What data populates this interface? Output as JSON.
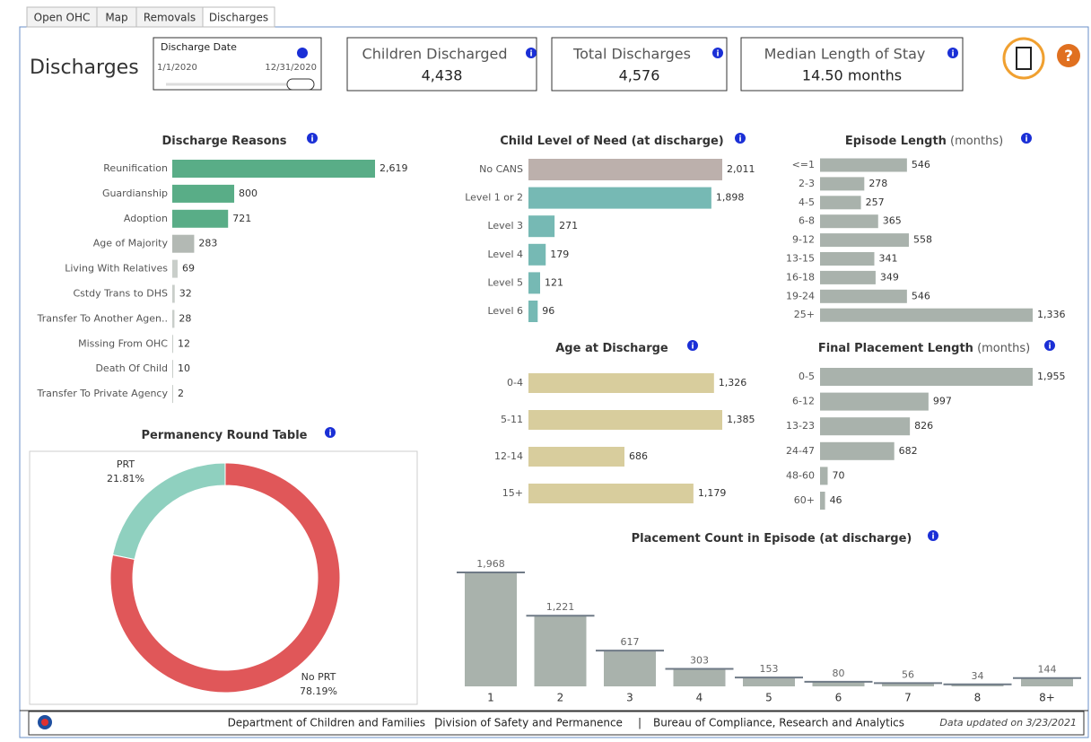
{
  "tabs": [
    "Open OHC",
    "Map",
    "Removals",
    "Discharges"
  ],
  "page_title": "Discharges",
  "filter": {
    "label": "Discharge Date",
    "start": "1/1/2020",
    "end": "12/31/2020"
  },
  "kpis": [
    {
      "label": "Children Discharged",
      "value": "4,438"
    },
    {
      "label": "Total Discharges",
      "value": "4,576"
    },
    {
      "label": "Median Length of Stay",
      "value": "14.50 months"
    }
  ],
  "chart_data": [
    {
      "type": "hbar",
      "title": "Discharge Reasons",
      "categories": [
        "Reunification",
        "Guardianship",
        "Adoption",
        "Age of Majority",
        "Living With Relatives",
        "Cstdy Trans to DHS",
        "Transfer To Another Agen..",
        "Missing From OHC",
        "Death Of Child",
        "Transfer To Private Agency"
      ],
      "values": [
        2619,
        800,
        721,
        283,
        69,
        32,
        28,
        12,
        10,
        2
      ],
      "value_labels": [
        "2,619",
        "800",
        "721",
        "283",
        "69",
        "32",
        "28",
        "12",
        "10",
        "2"
      ],
      "colors": [
        "#59ad87",
        "#59ad87",
        "#59ad87",
        "#b3b9b4",
        "#c9ceca",
        "#c9ceca",
        "#c9ceca",
        "#c9ceca",
        "#c9ceca",
        "#c9ceca"
      ]
    },
    {
      "type": "hbar",
      "title": "Child Level of Need (at discharge)",
      "categories": [
        "No CANS",
        "Level 1 or 2",
        "Level 3",
        "Level 4",
        "Level 5",
        "Level 6"
      ],
      "values": [
        2011,
        1898,
        271,
        179,
        121,
        96
      ],
      "value_labels": [
        "2,011",
        "1,898",
        "271",
        "179",
        "121",
        "96"
      ],
      "colors": [
        "#bcb0ac",
        "#76b9b4",
        "#76b9b4",
        "#76b9b4",
        "#76b9b4",
        "#76b9b4"
      ]
    },
    {
      "type": "hbar",
      "title": "Episode Length",
      "unit": "(months)",
      "categories": [
        "<=1",
        "2-3",
        "4-5",
        "6-8",
        "9-12",
        "13-15",
        "16-18",
        "19-24",
        "25+"
      ],
      "values": [
        546,
        278,
        257,
        365,
        558,
        341,
        349,
        546,
        1336
      ],
      "value_labels": [
        "546",
        "278",
        "257",
        "365",
        "558",
        "341",
        "349",
        "546",
        "1,336"
      ],
      "color": "#a9b2ac"
    },
    {
      "type": "hbar",
      "title": "Age at Discharge",
      "categories": [
        "0-4",
        "5-11",
        "12-14",
        "15+"
      ],
      "values": [
        1326,
        1385,
        686,
        1179
      ],
      "value_labels": [
        "1,326",
        "1,385",
        "686",
        "1,179"
      ],
      "color": "#d8cd9d"
    },
    {
      "type": "hbar",
      "title": "Final Placement Length",
      "unit": "(months)",
      "categories": [
        "0-5",
        "6-12",
        "13-23",
        "24-47",
        "48-60",
        "60+"
      ],
      "values": [
        1955,
        997,
        826,
        682,
        70,
        46
      ],
      "value_labels": [
        "1,955",
        "997",
        "826",
        "682",
        "70",
        "46"
      ],
      "color": "#a9b2ac"
    },
    {
      "type": "donut",
      "title": "Permanency Round Table",
      "categories": [
        "PRT",
        "No PRT"
      ],
      "values": [
        21.81,
        78.19
      ],
      "value_labels": [
        "21.81%",
        "78.19%"
      ],
      "colors": [
        "#8fd0bf",
        "#e05759"
      ]
    },
    {
      "type": "bar",
      "title": "Placement Count in Episode (at discharge)",
      "categories": [
        "1",
        "2",
        "3",
        "4",
        "5",
        "6",
        "7",
        "8",
        "8+"
      ],
      "values": [
        1968,
        1221,
        617,
        303,
        153,
        80,
        56,
        34,
        144
      ],
      "value_labels": [
        "1,968",
        "1,221",
        "617",
        "303",
        "153",
        "80",
        "56",
        "34",
        "144"
      ],
      "color": "#a9b2ac"
    }
  ],
  "footer": {
    "org": "Department of Children and Families",
    "division": "Division of Safety and Permanence",
    "bureau": "Bureau of Compliance, Research and Analytics",
    "updated": "Data updated on 3/23/2021"
  }
}
